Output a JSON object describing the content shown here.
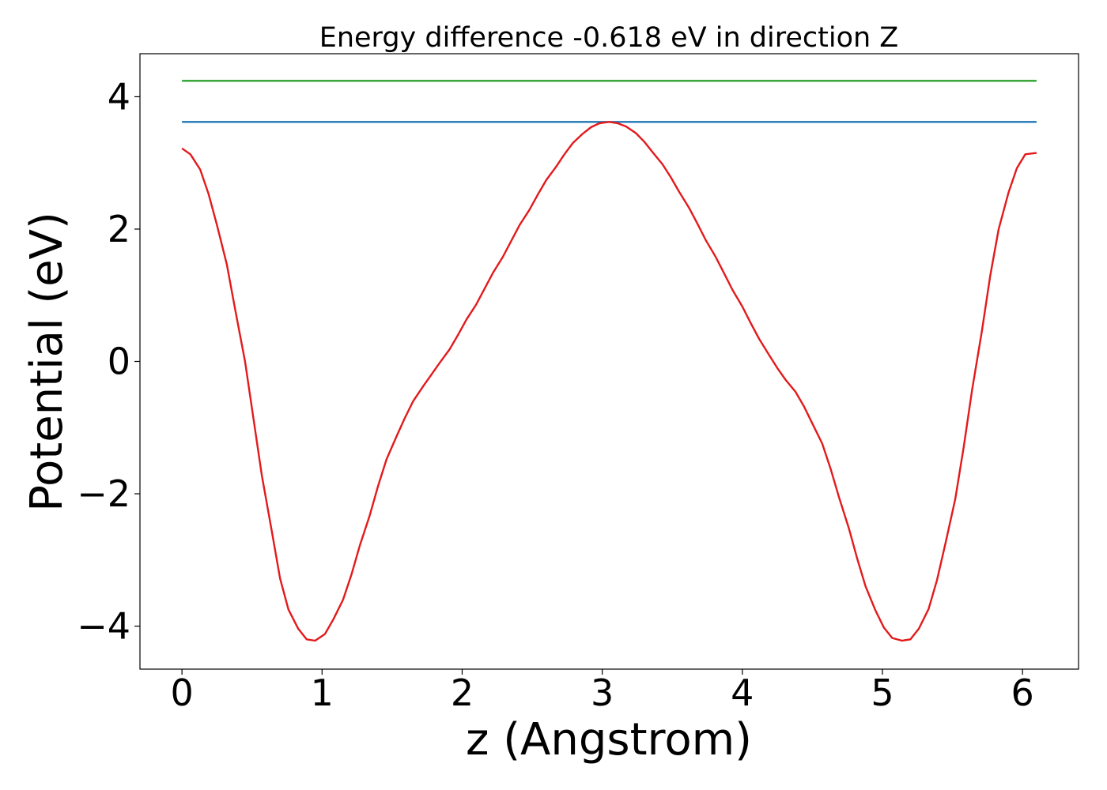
{
  "chart_data": {
    "type": "line",
    "title": "Energy difference -0.618 eV in direction Z",
    "xlabel": "z (Angstrom)",
    "ylabel": "Potential (eV)",
    "xlim": [
      -0.3,
      6.4
    ],
    "ylim": [
      -4.65,
      4.65
    ],
    "xticks": [
      0,
      1,
      2,
      3,
      4,
      5,
      6
    ],
    "yticks": [
      -4,
      -2,
      0,
      2,
      4
    ],
    "xtick_labels": [
      "0",
      "1",
      "2",
      "3",
      "4",
      "5",
      "6"
    ],
    "ytick_labels": [
      "−4",
      "−2",
      "0",
      "2",
      "4"
    ],
    "grid": false,
    "legend": "none",
    "series": [
      {
        "color": "#2ca02c",
        "x": [
          0.0,
          6.1
        ],
        "y": [
          4.24,
          4.24
        ]
      },
      {
        "color": "#1f77b4",
        "x": [
          0.0,
          6.1
        ],
        "y": [
          3.62,
          3.62
        ]
      },
      {
        "color": "#e31a1c",
        "x": [
          0.0,
          0.06,
          0.13,
          0.19,
          0.25,
          0.32,
          0.38,
          0.45,
          0.51,
          0.57,
          0.64,
          0.7,
          0.76,
          0.83,
          0.89,
          0.95,
          1.02,
          1.08,
          1.15,
          1.21,
          1.27,
          1.34,
          1.4,
          1.46,
          1.53,
          1.59,
          1.65,
          1.72,
          1.78,
          1.84,
          1.91,
          1.97,
          2.03,
          2.1,
          2.16,
          2.22,
          2.29,
          2.35,
          2.41,
          2.48,
          2.54,
          2.6,
          2.67,
          2.73,
          2.79,
          2.86,
          2.92,
          2.98,
          3.05,
          3.11,
          3.17,
          3.24,
          3.3,
          3.36,
          3.43,
          3.49,
          3.55,
          3.62,
          3.68,
          3.74,
          3.81,
          3.87,
          3.93,
          4.0,
          4.06,
          4.12,
          4.19,
          4.25,
          4.31,
          4.38,
          4.44,
          4.5,
          4.57,
          4.63,
          4.69,
          4.76,
          4.82,
          4.88,
          4.95,
          5.01,
          5.07,
          5.14,
          5.2,
          5.26,
          5.33,
          5.39,
          5.45,
          5.52,
          5.58,
          5.64,
          5.71,
          5.77,
          5.83,
          5.9,
          5.96,
          6.02,
          6.1
        ],
        "y": [
          3.22,
          3.13,
          2.9,
          2.53,
          2.06,
          1.47,
          0.78,
          0.0,
          -0.86,
          -1.72,
          -2.55,
          -3.28,
          -3.75,
          -4.04,
          -4.2,
          -4.22,
          -4.12,
          -3.9,
          -3.6,
          -3.22,
          -2.78,
          -2.33,
          -1.88,
          -1.48,
          -1.14,
          -0.86,
          -0.6,
          -0.38,
          -0.2,
          -0.02,
          0.18,
          0.4,
          0.63,
          0.86,
          1.1,
          1.34,
          1.58,
          1.82,
          2.06,
          2.29,
          2.52,
          2.74,
          2.94,
          3.13,
          3.3,
          3.44,
          3.54,
          3.6,
          3.62,
          3.6,
          3.55,
          3.45,
          3.32,
          3.16,
          2.98,
          2.78,
          2.56,
          2.32,
          2.08,
          1.83,
          1.58,
          1.33,
          1.08,
          0.83,
          0.58,
          0.34,
          0.1,
          -0.1,
          -0.28,
          -0.46,
          -0.68,
          -0.94,
          -1.24,
          -1.62,
          -2.05,
          -2.52,
          -2.98,
          -3.4,
          -3.76,
          -4.02,
          -4.18,
          -4.22,
          -4.2,
          -4.04,
          -3.74,
          -3.3,
          -2.75,
          -2.08,
          -1.3,
          -0.43,
          0.46,
          1.3,
          2.0,
          2.55,
          2.92,
          3.13,
          3.15
        ]
      }
    ]
  }
}
